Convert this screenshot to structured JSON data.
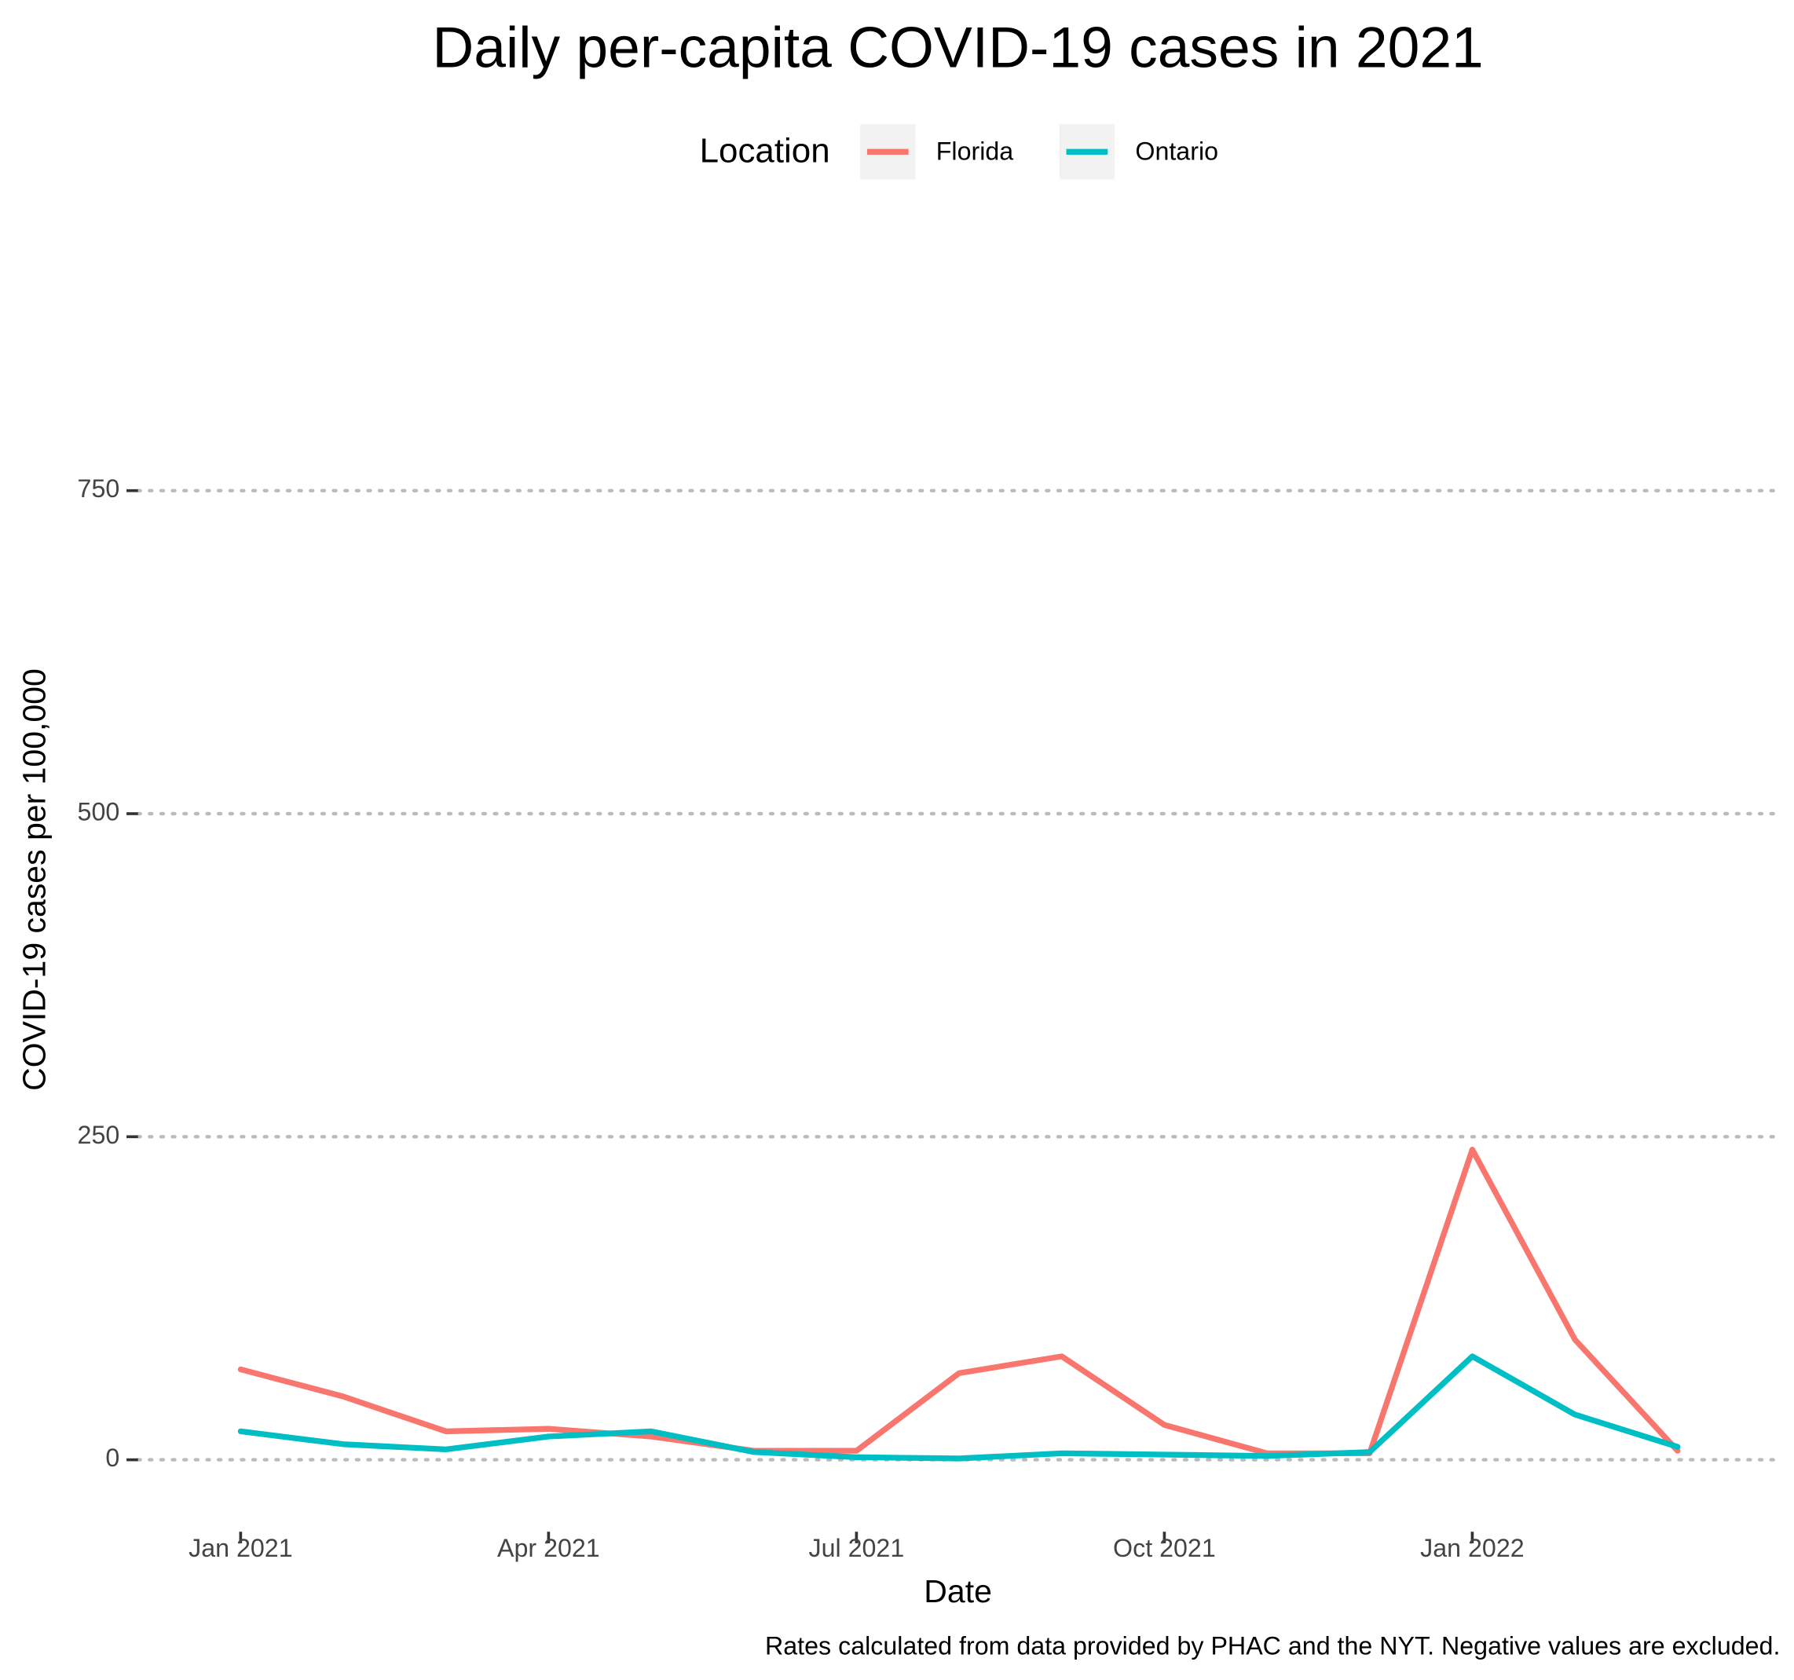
{
  "chart_data": {
    "type": "line",
    "title": "Daily per-capita COVID-19 cases in 2021",
    "x_label": "Date",
    "y_label": "COVID-19 cases per 100,000",
    "caption": "Rates calculated from data provided by PHAC and the NYT. Negative values are excluded.",
    "legend_title": "Location",
    "legend_position": "top",
    "grid": true,
    "x": [
      "2021-01",
      "2021-02",
      "2021-03",
      "2021-04",
      "2021-05",
      "2021-06",
      "2021-07",
      "2021-08",
      "2021-09",
      "2021-10",
      "2021-11",
      "2021-12",
      "2022-01",
      "2022-02",
      "2022-03"
    ],
    "series": [
      {
        "name": "Florida",
        "color": "#f8766d",
        "values": [
          70,
          49,
          22,
          24,
          18,
          7,
          7,
          67,
          80,
          27,
          5,
          5,
          240,
          93,
          7
        ]
      },
      {
        "name": "Ontario",
        "color": "#00bfc4",
        "values": [
          22,
          12,
          8,
          18,
          22,
          6,
          2,
          1,
          5,
          4,
          3,
          6,
          80,
          35,
          10
        ]
      }
    ],
    "xlim": [
      "2020-12",
      "2022-04"
    ],
    "xticks": [
      {
        "value": "2021-01",
        "label": "Jan 2021"
      },
      {
        "value": "2021-04",
        "label": "Apr 2021"
      },
      {
        "value": "2021-07",
        "label": "Jul 2021"
      },
      {
        "value": "2021-10",
        "label": "Oct 2021"
      },
      {
        "value": "2022-01",
        "label": "Jan 2022"
      }
    ],
    "ylim": [
      -45,
      925
    ],
    "yticks": [
      0,
      250,
      500,
      750
    ]
  }
}
